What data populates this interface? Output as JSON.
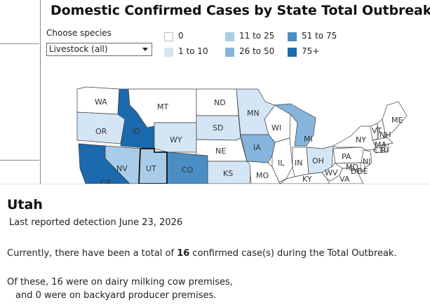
{
  "title": "Domestic Confirmed Cases by State Total Outbreak",
  "filter": {
    "label": "Choose species",
    "selected": "Livestock (all)"
  },
  "legend": [
    {
      "label": "0",
      "color": "#ffffff"
    },
    {
      "label": "1 to 10",
      "color": "#d4e6f5"
    },
    {
      "label": "11 to 25",
      "color": "#a9cde9"
    },
    {
      "label": "26 to 50",
      "color": "#85b5dc"
    },
    {
      "label": "51 to 75",
      "color": "#4b8ec6"
    },
    {
      "label": "75+",
      "color": "#1a6aad"
    }
  ],
  "states": [
    {
      "abbr": "WA",
      "color": "#ffffff"
    },
    {
      "abbr": "OR",
      "color": "#d4e6f5"
    },
    {
      "abbr": "ID",
      "color": "#1a6aad"
    },
    {
      "abbr": "MT",
      "color": "#ffffff"
    },
    {
      "abbr": "WY",
      "color": "#d4e6f5"
    },
    {
      "abbr": "ND",
      "color": "#ffffff"
    },
    {
      "abbr": "SD",
      "color": "#d4e6f5"
    },
    {
      "abbr": "NE",
      "color": "#ffffff"
    },
    {
      "abbr": "KS",
      "color": "#d4e6f5"
    },
    {
      "abbr": "MN",
      "color": "#d4e6f5"
    },
    {
      "abbr": "IA",
      "color": "#85b5dc"
    },
    {
      "abbr": "WI",
      "color": "#ffffff"
    },
    {
      "abbr": "MI",
      "color": "#85b5dc"
    },
    {
      "abbr": "IL",
      "color": "#ffffff"
    },
    {
      "abbr": "IN",
      "color": "#ffffff"
    },
    {
      "abbr": "OH",
      "color": "#d4e6f5"
    },
    {
      "abbr": "MO",
      "color": "#ffffff"
    },
    {
      "abbr": "KY",
      "color": "#ffffff"
    },
    {
      "abbr": "WV",
      "color": "#ffffff"
    },
    {
      "abbr": "VA",
      "color": "#ffffff"
    },
    {
      "abbr": "PA",
      "color": "#ffffff"
    },
    {
      "abbr": "NY",
      "color": "#ffffff"
    },
    {
      "abbr": "NJ",
      "color": "#ffffff"
    },
    {
      "abbr": "MD",
      "color": "#ffffff"
    },
    {
      "abbr": "DC",
      "color": "#ffffff"
    },
    {
      "abbr": "DE",
      "color": "#ffffff"
    },
    {
      "abbr": "VT",
      "color": "#ffffff"
    },
    {
      "abbr": "NH",
      "color": "#ffffff"
    },
    {
      "abbr": "MA",
      "color": "#ffffff"
    },
    {
      "abbr": "CT",
      "color": "#ffffff"
    },
    {
      "abbr": "RI",
      "color": "#ffffff"
    },
    {
      "abbr": "ME",
      "color": "#ffffff"
    },
    {
      "abbr": "NV",
      "color": "#a9cde9"
    },
    {
      "abbr": "UT",
      "color": "#a9cde9"
    },
    {
      "abbr": "CO",
      "color": "#4b8ec6"
    },
    {
      "abbr": "CA",
      "color": "#1a6aad"
    }
  ],
  "detail": {
    "state": "Utah",
    "last_detection": "Last reported detection June 23, 2026",
    "total_prefix": "Currently, there have been a total of ",
    "total_count": "16",
    "total_suffix": " confirmed case(s) during the Total Outbreak.",
    "dairy_line": "Of these, 16 were on dairy milking cow premises,",
    "backyard_line": "and 0 were on backyard producer premises."
  }
}
